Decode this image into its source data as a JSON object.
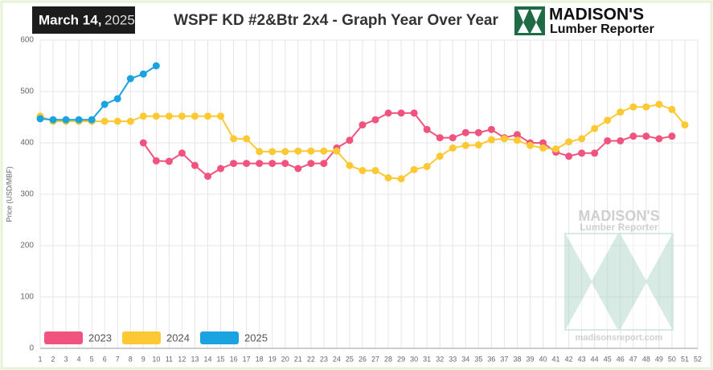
{
  "date_day": "March 14,",
  "date_year": "2025",
  "logo": {
    "name": "MADISON'S",
    "sub": "Lumber Reporter"
  },
  "watermark": {
    "name": "MADISON'S",
    "sub": "Lumber Reporter",
    "url": "madisonsreport.com"
  },
  "chart_data": {
    "type": "line",
    "title": "WSPF KD #2&Btr 2x4 - Graph Year Over Year",
    "y_label": "Price (USD/MBF)",
    "categories": [
      1,
      2,
      3,
      4,
      5,
      6,
      7,
      8,
      9,
      10,
      11,
      12,
      13,
      14,
      15,
      16,
      17,
      18,
      19,
      20,
      21,
      22,
      23,
      24,
      25,
      26,
      27,
      28,
      29,
      30,
      31,
      32,
      33,
      34,
      35,
      36,
      37,
      38,
      39,
      40,
      41,
      42,
      43,
      44,
      45,
      46,
      47,
      48,
      49,
      50,
      51,
      52
    ],
    "ylim": [
      0,
      600
    ],
    "yticks": [
      0,
      100,
      200,
      300,
      400,
      500,
      600
    ],
    "grid": true,
    "legend": "bottom-left",
    "series": [
      {
        "name": "2023",
        "color": "#f0547e",
        "values": [
          null,
          null,
          null,
          null,
          null,
          null,
          null,
          null,
          400,
          365,
          364,
          380,
          356,
          335,
          350,
          360,
          360,
          360,
          360,
          360,
          350,
          360,
          360,
          390,
          405,
          435,
          445,
          458,
          458,
          458,
          426,
          410,
          410,
          420,
          420,
          426,
          410,
          416,
          400,
          400,
          382,
          374,
          380,
          380,
          404,
          404,
          413,
          413,
          408,
          413,
          null,
          null
        ]
      },
      {
        "name": "2024",
        "color": "#fcc934",
        "values": [
          452,
          442,
          442,
          442,
          442,
          442,
          442,
          442,
          452,
          452,
          452,
          452,
          452,
          452,
          452,
          408,
          408,
          383,
          383,
          383,
          384,
          384,
          384,
          384,
          356,
          346,
          346,
          332,
          330,
          348,
          354,
          374,
          390,
          395,
          396,
          406,
          408,
          405,
          395,
          390,
          388,
          402,
          408,
          428,
          444,
          460,
          470,
          470,
          475,
          465,
          435,
          null
        ]
      },
      {
        "name": "2025",
        "color": "#1aa3e0",
        "values": [
          447,
          445,
          445,
          445,
          445,
          475,
          486,
          525,
          534,
          550,
          null,
          null,
          null,
          null,
          null,
          null,
          null,
          null,
          null,
          null,
          null,
          null,
          null,
          null,
          null,
          null,
          null,
          null,
          null,
          null,
          null,
          null,
          null,
          null,
          null,
          null,
          null,
          null,
          null,
          null,
          null,
          null,
          null,
          null,
          null,
          null,
          null,
          null,
          null,
          null,
          null,
          null
        ]
      }
    ]
  }
}
